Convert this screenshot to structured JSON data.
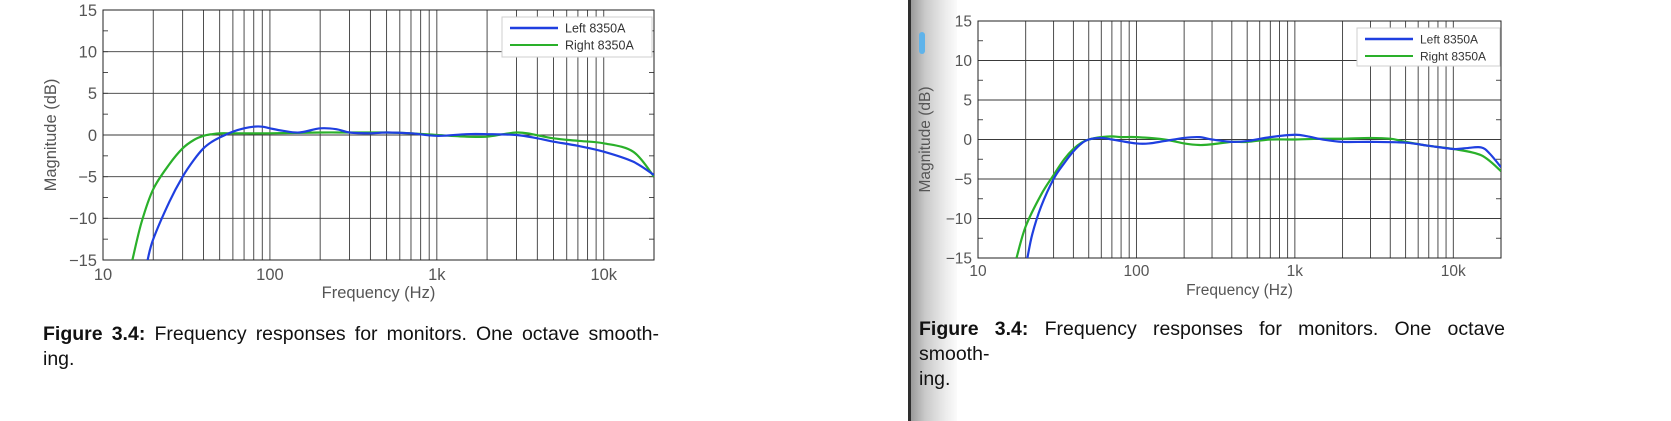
{
  "caption": {
    "label": "Figure 3.4:",
    "text_line1": "Frequency responses for monitors.  One octave smooth-",
    "text_line2": "ing."
  },
  "colors": {
    "left_series": "#1f3fe0",
    "right_series": "#2ab02a",
    "grid": "#3a3a3a",
    "axis_text": "#555555",
    "divider": "#2e2e2e",
    "scroll_thumb": "#5fb3ea"
  },
  "chart_data": [
    {
      "type": "line",
      "title": "",
      "xlabel": "Frequency (Hz)",
      "ylabel": "Magnitude (dB)",
      "xscale": "log",
      "xlim": [
        10,
        20000
      ],
      "ylim": [
        -15,
        15
      ],
      "xticks": [
        10,
        100,
        1000,
        10000
      ],
      "xtick_labels": [
        "10",
        "100",
        "1k",
        "10k"
      ],
      "yticks": [
        15,
        10,
        5,
        0,
        -5,
        -10,
        -15
      ],
      "ytick_labels": [
        "15",
        "10",
        "5",
        "0",
        "−5",
        "−10",
        "−15"
      ],
      "grid": true,
      "legend_position": "top-right",
      "series": [
        {
          "name": "Left 8350A",
          "x": [
            18.5,
            20,
            25,
            30,
            35,
            40,
            45,
            50,
            60,
            70,
            80,
            90,
            100,
            120,
            150,
            200,
            250,
            300,
            400,
            500,
            700,
            1000,
            1500,
            2000,
            3000,
            4000,
            5000,
            7000,
            10000,
            15000,
            20000
          ],
          "y": [
            -15,
            -12.5,
            -8,
            -5,
            -3,
            -1.6,
            -0.8,
            -0.3,
            0.4,
            0.8,
            1.0,
            1.0,
            0.8,
            0.5,
            0.3,
            0.8,
            0.7,
            0.3,
            0.2,
            0.3,
            0.2,
            -0.1,
            0.1,
            0.1,
            0.0,
            -0.4,
            -0.8,
            -1.3,
            -2.0,
            -3.2,
            -4.8
          ]
        },
        {
          "name": "Right 8350A",
          "x": [
            15,
            17,
            20,
            25,
            30,
            35,
            40,
            45,
            50,
            60,
            70,
            100,
            200,
            300,
            500,
            700,
            1000,
            1500,
            2000,
            2500,
            3000,
            3500,
            5000,
            7000,
            10000,
            15000,
            20000
          ],
          "y": [
            -15,
            -10.5,
            -6.5,
            -3.5,
            -1.6,
            -0.6,
            -0.1,
            0.1,
            0.2,
            0.2,
            0.2,
            0.2,
            0.3,
            0.3,
            0.3,
            0.2,
            0.0,
            -0.2,
            -0.2,
            0.1,
            0.3,
            0.2,
            -0.4,
            -0.7,
            -1.0,
            -2.0,
            -5.0
          ]
        }
      ]
    },
    {
      "type": "line",
      "title": "",
      "xlabel": "Frequency (Hz)",
      "ylabel": "Magnitude (dB)",
      "xscale": "log",
      "xlim": [
        10,
        20000
      ],
      "ylim": [
        -15,
        15
      ],
      "xticks": [
        10,
        100,
        1000,
        10000
      ],
      "xtick_labels": [
        "10",
        "100",
        "1k",
        "10k"
      ],
      "yticks": [
        15,
        10,
        5,
        0,
        -5,
        -10,
        -15
      ],
      "ytick_labels": [
        "15",
        "10",
        "5",
        "0",
        "−5",
        "−10",
        "−15"
      ],
      "grid": true,
      "legend_position": "top-right",
      "series": [
        {
          "name": "Left 8350A",
          "x": [
            20.5,
            22,
            25,
            30,
            35,
            40,
            45,
            50,
            60,
            70,
            80,
            100,
            120,
            150,
            200,
            250,
            300,
            400,
            500,
            700,
            1000,
            1200,
            1500,
            2000,
            3000,
            5000,
            7000,
            10000,
            12000,
            15000,
            17000,
            20000
          ],
          "y": [
            -15,
            -12,
            -8.5,
            -5,
            -3,
            -1.5,
            -0.5,
            0.0,
            0.2,
            0.0,
            -0.2,
            -0.5,
            -0.5,
            -0.2,
            0.2,
            0.3,
            0.0,
            -0.3,
            -0.2,
            0.3,
            0.6,
            0.4,
            0.0,
            -0.3,
            -0.3,
            -0.4,
            -0.8,
            -1.2,
            -1.1,
            -1.0,
            -1.8,
            -3.5
          ]
        },
        {
          "name": "Right 8350A",
          "x": [
            17.5,
            20,
            25,
            30,
            35,
            40,
            45,
            50,
            60,
            70,
            80,
            100,
            150,
            200,
            250,
            300,
            400,
            500,
            700,
            1000,
            1500,
            2000,
            3000,
            4000,
            5000,
            7000,
            10000,
            15000,
            20000
          ],
          "y": [
            -15,
            -11,
            -7,
            -4.5,
            -2.5,
            -1.2,
            -0.4,
            0.0,
            0.3,
            0.4,
            0.3,
            0.3,
            0.0,
            -0.5,
            -0.7,
            -0.6,
            -0.3,
            -0.3,
            0.0,
            0.0,
            0.1,
            0.1,
            0.2,
            0.1,
            -0.3,
            -0.8,
            -1.2,
            -2.0,
            -4.0
          ]
        }
      ]
    }
  ]
}
